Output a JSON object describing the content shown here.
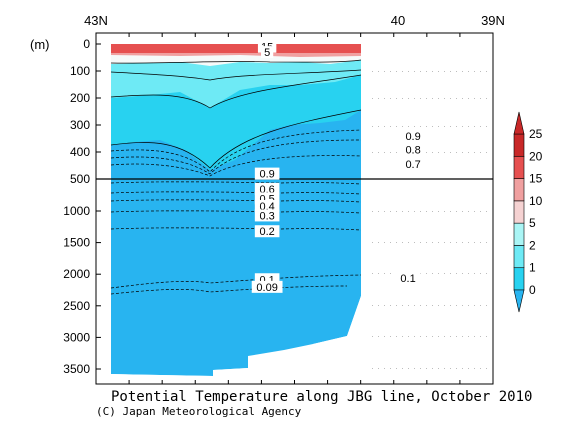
{
  "chart_data": {
    "type": "heatmap",
    "title": "Potential Temperature along JBG line, October 2010",
    "credit": "(C) Japan Meteorological Agency",
    "ylabel": "(m)",
    "x_ticks": [
      "43N",
      "40",
      "39N"
    ],
    "y_upper": {
      "range": [
        0,
        500
      ],
      "ticks": [
        0,
        100,
        200,
        300,
        400,
        500
      ]
    },
    "y_lower": {
      "range": [
        500,
        3800
      ],
      "ticks": [
        1000,
        1500,
        2000,
        2500,
        3000,
        3500
      ]
    },
    "colorbar": {
      "levels": [
        0,
        1,
        2,
        5,
        10,
        15,
        20,
        25
      ],
      "colors": [
        "#28b4f0",
        "#28d2f0",
        "#6eeaf5",
        "#aaf5f5",
        "#f5d2d2",
        "#f0a0a0",
        "#e65050",
        "#c82828"
      ]
    },
    "contour_labels": [
      {
        "text": "15",
        "x_deg": 41.3,
        "depth": 10
      },
      {
        "text": "5",
        "x_deg": 41.3,
        "depth": 30
      },
      {
        "text": "0.9",
        "x_deg": 41.3,
        "depth": 480
      },
      {
        "text": "0.9",
        "x_deg": 39.85,
        "depth": 340
      },
      {
        "text": "0.8",
        "x_deg": 39.85,
        "depth": 390
      },
      {
        "text": "0.7",
        "x_deg": 39.85,
        "depth": 445
      },
      {
        "text": "0.6",
        "x_deg": 41.3,
        "depth": 650
      },
      {
        "text": "0.5",
        "x_deg": 41.3,
        "depth": 800
      },
      {
        "text": "0.4",
        "x_deg": 41.3,
        "depth": 920
      },
      {
        "text": "0.3",
        "x_deg": 41.3,
        "depth": 1070
      },
      {
        "text": "0.2",
        "x_deg": 41.3,
        "depth": 1320
      },
      {
        "text": "0.1",
        "x_deg": 41.3,
        "depth": 2080
      },
      {
        "text": "0.09",
        "x_deg": 41.3,
        "depth": 2200
      },
      {
        "text": "0.1",
        "x_deg": 39.9,
        "depth": 2060
      }
    ]
  }
}
